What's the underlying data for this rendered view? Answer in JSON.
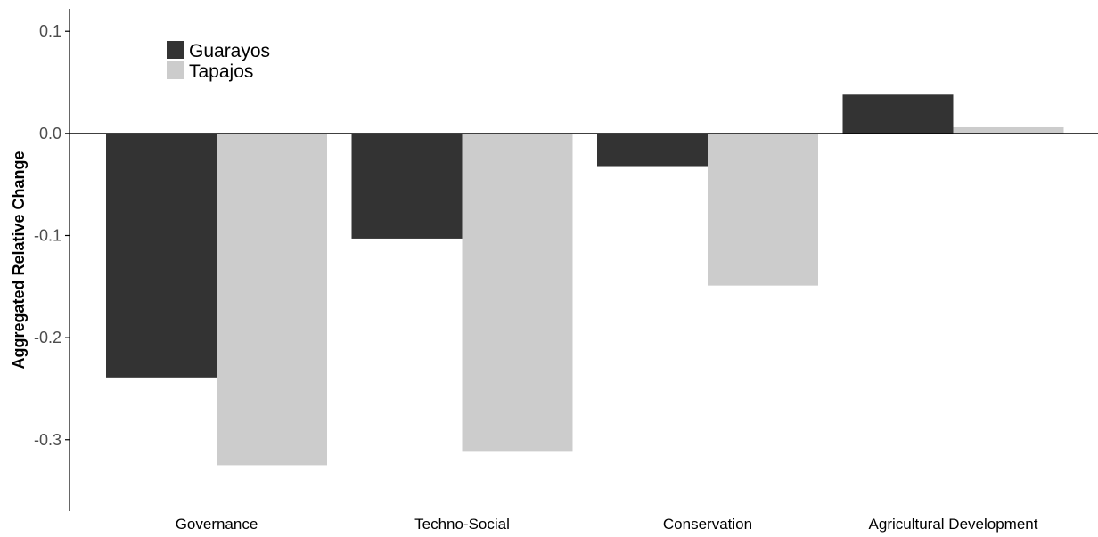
{
  "chart_data": {
    "type": "bar",
    "title": "",
    "xlabel": "",
    "ylabel": "Aggregated Relative Change",
    "categories": [
      "Governance",
      "Techno-Social",
      "Conservation",
      "Agricultural Development"
    ],
    "series": [
      {
        "name": "Guarayos",
        "values": [
          -0.239,
          -0.103,
          -0.032,
          0.038
        ],
        "color": "#333333"
      },
      {
        "name": "Tapajos",
        "values": [
          -0.325,
          -0.311,
          -0.149,
          0.006
        ],
        "color": "#cccccc"
      }
    ],
    "ylim": [
      -0.37,
      0.122
    ],
    "yticks": [
      0.1,
      0.0,
      -0.1,
      -0.2,
      -0.3
    ],
    "ytick_labels": [
      "0.1",
      "0.0",
      "-0.1",
      "-0.2",
      "-0.3"
    ],
    "grid": false,
    "legend_position": "top-left"
  }
}
